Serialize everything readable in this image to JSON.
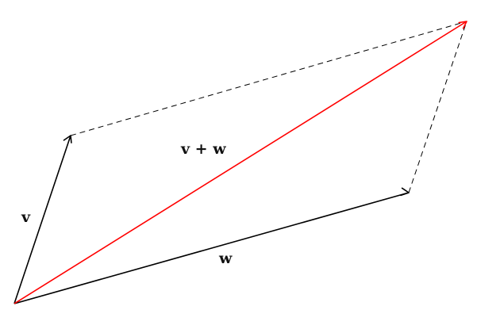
{
  "labels": {
    "v": "v",
    "w": "w",
    "sum": "v + w"
  },
  "colors": {
    "vector": "#000000",
    "resultant": "#ff0000",
    "guide": "#000000"
  }
}
